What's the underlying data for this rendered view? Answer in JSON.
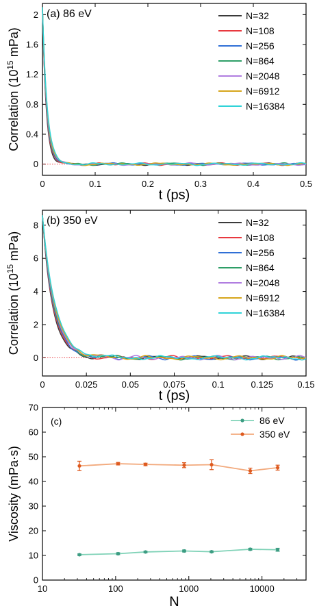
{
  "chart_data": [
    {
      "type": "line",
      "panel_label": "(a) 86 eV",
      "xlabel": "t (ps)",
      "ylabel_prefix": "Correlation (10",
      "ylabel_exp": "15",
      "ylabel_suffix": " mPa)",
      "xlim": [
        0,
        0.5
      ],
      "ylim": [
        -0.15,
        2.15
      ],
      "xticks": [
        0,
        0.1,
        0.2,
        0.3,
        0.4,
        0.5
      ],
      "xtick_labels": [
        "0",
        "0.1",
        "0.2",
        "0.3",
        "0.4",
        "0.5"
      ],
      "yticks": [
        0,
        0.4,
        0.8,
        1.2,
        1.6,
        2.0
      ],
      "ytick_labels": [
        "0",
        "0.4",
        "0.8",
        "1.2",
        "1.6",
        "2"
      ],
      "grid": false,
      "legend": "top-right",
      "zero_reference_line": true,
      "decay_time": 0.008,
      "peak": 2.1,
      "noise_amplitude": 0.018,
      "series": [
        {
          "name": "N=32",
          "color": "#3a3a3a"
        },
        {
          "name": "N=108",
          "color": "#e8393f"
        },
        {
          "name": "N=256",
          "color": "#2f6fd6"
        },
        {
          "name": "N=864",
          "color": "#2e9e67"
        },
        {
          "name": "N=2048",
          "color": "#b07ce0"
        },
        {
          "name": "N=6912",
          "color": "#d6a51a"
        },
        {
          "name": "N=16384",
          "color": "#2fd3d8"
        }
      ]
    },
    {
      "type": "line",
      "panel_label": "(b) 350 eV",
      "xlabel": "t (ps)",
      "ylabel_prefix": "Correlation (10",
      "ylabel_exp": "15",
      "ylabel_suffix": " mPa)",
      "xlim": [
        0,
        0.15
      ],
      "ylim": [
        -1.1,
        8.9
      ],
      "xticks": [
        0,
        0.025,
        0.05,
        0.075,
        0.1,
        0.125,
        0.15
      ],
      "xtick_labels": [
        "0",
        "0.025",
        "0.05",
        "0.075",
        "0.1",
        "0.125",
        "0.15"
      ],
      "yticks": [
        0,
        2,
        4,
        6,
        8
      ],
      "ytick_labels": [
        "0",
        "2",
        "4",
        "6",
        "8"
      ],
      "grid": false,
      "legend": "top-right",
      "zero_reference_line": true,
      "decay_time": 0.0065,
      "peak": 8.6,
      "noise_amplitude": 0.14,
      "series": [
        {
          "name": "N=32",
          "color": "#3a3a3a"
        },
        {
          "name": "N=108",
          "color": "#e8393f"
        },
        {
          "name": "N=256",
          "color": "#2f6fd6"
        },
        {
          "name": "N=864",
          "color": "#2e9e67"
        },
        {
          "name": "N=2048",
          "color": "#b07ce0"
        },
        {
          "name": "N=6912",
          "color": "#d6a51a"
        },
        {
          "name": "N=16384",
          "color": "#2fd3d8"
        }
      ]
    },
    {
      "type": "line",
      "panel_label": "(c)",
      "xlabel": "N",
      "ylabel": "Viscosity (mPa·s)",
      "xscale": "log",
      "xlim": [
        10,
        40000
      ],
      "ylim": [
        0,
        70
      ],
      "xticks": [
        10,
        100,
        1000,
        10000
      ],
      "xtick_labels": [
        "10",
        "100",
        "1000",
        "10000"
      ],
      "yticks": [
        0,
        10,
        20,
        30,
        40,
        50,
        60,
        70
      ],
      "ytick_labels": [
        "0",
        "10",
        "20",
        "30",
        "40",
        "50",
        "60",
        "70"
      ],
      "grid": false,
      "legend": "top-right",
      "x": [
        32,
        108,
        256,
        864,
        2048,
        6912,
        16384
      ],
      "series": [
        {
          "name": "86 eV",
          "color": "#7fd2b7",
          "marker_color": "#3c9c82",
          "values": [
            10.3,
            10.7,
            11.4,
            11.8,
            11.5,
            12.5,
            12.3
          ],
          "errors": [
            0.3,
            0.4,
            0.3,
            0.4,
            0.3,
            0.4,
            0.6
          ]
        },
        {
          "name": "350 eV",
          "color": "#f2a97c",
          "marker_color": "#de5a1f",
          "values": [
            46.3,
            47.2,
            46.9,
            46.6,
            46.8,
            44.3,
            45.6
          ],
          "errors": [
            1.9,
            0.5,
            0.5,
            1.0,
            2.0,
            1.1,
            1.0
          ]
        }
      ]
    }
  ]
}
